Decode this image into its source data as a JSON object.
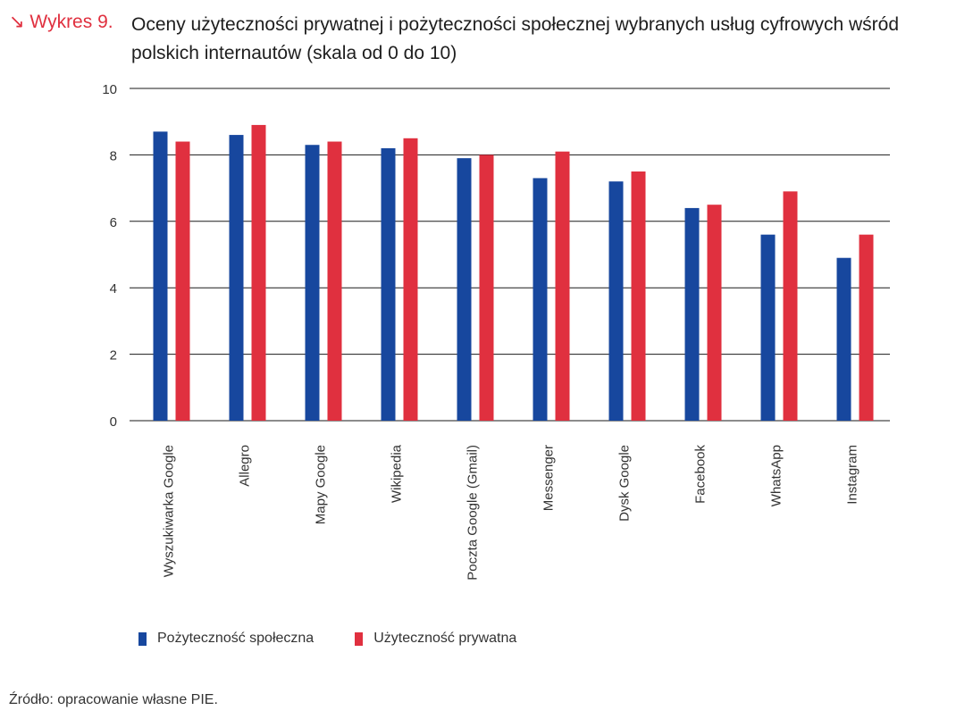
{
  "header": {
    "label": "↘ Wykres 9.",
    "title": "Oceny użyteczności prywatnej i pożyteczności społecznej wybranych usług cyfrowych wśród polskich internautów (skala od 0 do 10)"
  },
  "chart_data": {
    "type": "bar",
    "title": "Oceny użyteczności prywatnej i pożyteczności społecznej wybranych usług cyfrowych wśród polskich internautów (skala od 0 do 10)",
    "xlabel": "",
    "ylabel": "",
    "ylim": [
      0,
      10
    ],
    "yticks": [
      0,
      2,
      4,
      6,
      8,
      10
    ],
    "grid": true,
    "legend_position": "bottom-left",
    "categories": [
      "Wyszukiwarka Google",
      "Allegro",
      "Mapy Google",
      "Wikipedia",
      "Poczta Google (Gmail)",
      "Messenger",
      "Dysk Google",
      "Facebook",
      "WhatsApp",
      "Instagram"
    ],
    "series": [
      {
        "name": "Pożyteczność społeczna",
        "color": "#17479e",
        "values": [
          8.7,
          8.6,
          8.3,
          8.2,
          7.9,
          7.3,
          7.2,
          6.4,
          5.6,
          4.9
        ]
      },
      {
        "name": "Użyteczność prywatna",
        "color": "#e0303f",
        "values": [
          8.4,
          8.9,
          8.4,
          8.5,
          8.0,
          8.1,
          7.5,
          6.5,
          6.9,
          5.6
        ]
      }
    ]
  },
  "legend": {
    "items": [
      {
        "label": "Pożyteczność społeczna",
        "color": "#17479e"
      },
      {
        "label": "Użyteczność prywatna",
        "color": "#e0303f"
      }
    ]
  },
  "footer": {
    "source": "Źródło: opracowanie własne PIE."
  }
}
